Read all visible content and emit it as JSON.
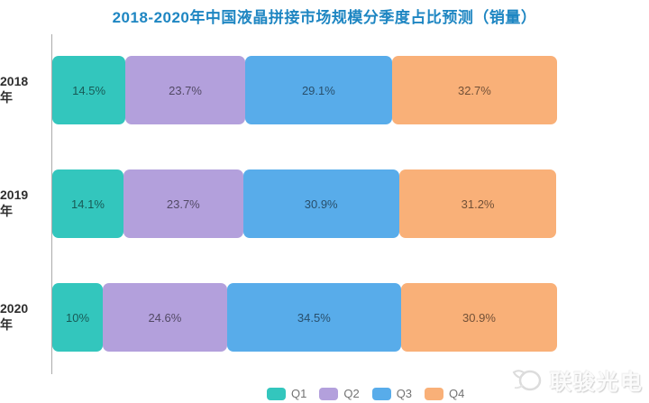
{
  "title": "2018-2020年中国液晶拼接市场规模分季度占比预测（销量）",
  "colors": {
    "title": "#1e86c2",
    "axis": "#ababab",
    "q1": "#33c6bd",
    "q2": "#b3a0dc",
    "q3": "#58aceа",
    "q4": "#f9b078"
  },
  "chart_data": {
    "type": "bar",
    "orientation": "horizontal",
    "stacked": true,
    "title": "2018-2020年中国液晶拼接市场规模分季度占比预测（销量）",
    "categories": [
      "2018年",
      "2019年",
      "2020年"
    ],
    "series": [
      {
        "name": "Q1",
        "color": "#33c6bd",
        "values": [
          14.5,
          14.1,
          10
        ]
      },
      {
        "name": "Q2",
        "color": "#b3a0dc",
        "values": [
          23.7,
          23.7,
          24.6
        ]
      },
      {
        "name": "Q3",
        "color": "#58acea",
        "values": [
          29.1,
          30.9,
          34.5
        ]
      },
      {
        "name": "Q4",
        "color": "#f9b078",
        "values": [
          32.7,
          31.2,
          30.9
        ]
      }
    ],
    "data_labels": [
      [
        "14.5%",
        "23.7%",
        "29.1%",
        "32.7%"
      ],
      [
        "14.1%",
        "23.7%",
        "30.9%",
        "31.2%"
      ],
      [
        "10%",
        "24.6%",
        "34.5%",
        "30.9%"
      ]
    ],
    "xlim": [
      0,
      100
    ],
    "grid": false,
    "legend": [
      "Q1",
      "Q2",
      "Q3",
      "Q4"
    ],
    "legend_position": "bottom"
  },
  "watermark": {
    "text": "联骏光电"
  }
}
